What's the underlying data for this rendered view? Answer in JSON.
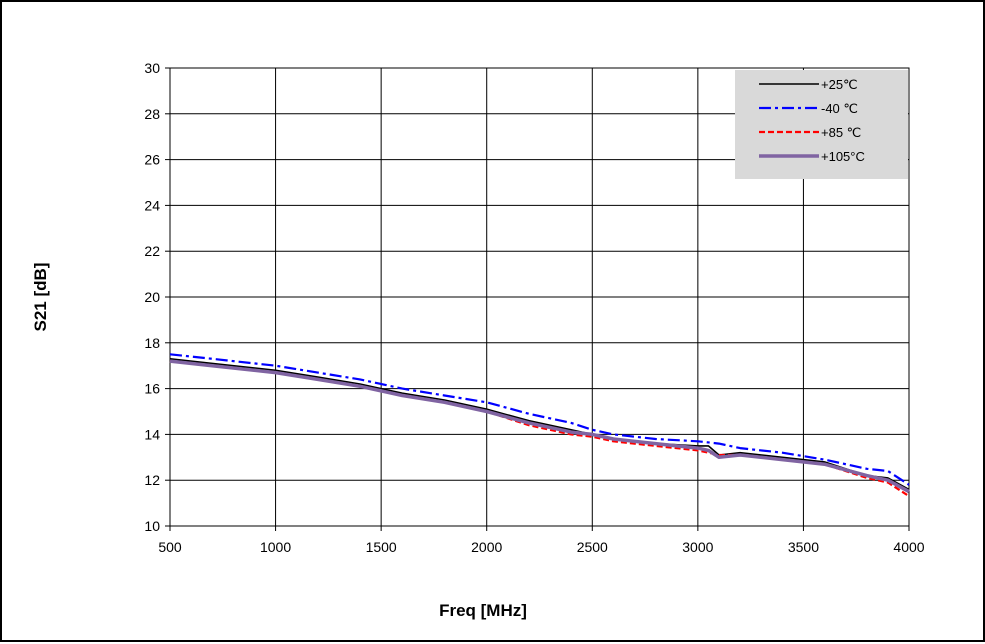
{
  "chart_data": {
    "type": "line",
    "title": "",
    "xlabel": "Freq [MHz]",
    "ylabel": "S21 [dB]",
    "xlim": [
      500,
      4000
    ],
    "ylim": [
      10,
      30
    ],
    "x_ticks": [
      500,
      1000,
      1500,
      2000,
      2500,
      3000,
      3500,
      4000
    ],
    "y_ticks": [
      10,
      12,
      14,
      16,
      18,
      20,
      22,
      24,
      26,
      28,
      30
    ],
    "grid": true,
    "legend_position": "top-right",
    "series": [
      {
        "name": "+25℃",
        "color": "#000000",
        "style": "solid",
        "x": [
          500,
          700,
          1000,
          1200,
          1400,
          1600,
          1800,
          2000,
          2200,
          2400,
          2500,
          2600,
          2800,
          3000,
          3050,
          3100,
          3200,
          3400,
          3600,
          3800,
          3900,
          4000
        ],
        "y": [
          17.3,
          17.1,
          16.8,
          16.5,
          16.2,
          15.8,
          15.5,
          15.1,
          14.6,
          14.2,
          14.0,
          13.8,
          13.6,
          13.5,
          13.5,
          13.1,
          13.2,
          13.0,
          12.8,
          12.2,
          12.1,
          11.6
        ]
      },
      {
        "name": "-40 ℃",
        "color": "#0000ff",
        "style": "dashdot",
        "x": [
          500,
          700,
          1000,
          1200,
          1400,
          1600,
          1800,
          2000,
          2200,
          2400,
          2500,
          2600,
          2800,
          3000,
          3100,
          3200,
          3400,
          3600,
          3800,
          3900,
          4000
        ],
        "y": [
          17.5,
          17.3,
          17.0,
          16.7,
          16.4,
          16.0,
          15.7,
          15.4,
          14.9,
          14.5,
          14.2,
          14.0,
          13.8,
          13.7,
          13.6,
          13.4,
          13.2,
          12.9,
          12.5,
          12.4,
          11.8
        ]
      },
      {
        "name": "+85 ℃",
        "color": "#ff0000",
        "style": "dashed",
        "x": [
          500,
          700,
          1000,
          1200,
          1400,
          1600,
          1800,
          2000,
          2200,
          2400,
          2500,
          2600,
          2800,
          3000,
          3100,
          3200,
          3400,
          3600,
          3800,
          3900,
          4000
        ],
        "y": [
          17.2,
          17.0,
          16.7,
          16.4,
          16.1,
          15.7,
          15.4,
          15.0,
          14.4,
          14.0,
          13.9,
          13.7,
          13.5,
          13.3,
          13.1,
          13.1,
          12.9,
          12.7,
          12.1,
          11.9,
          11.3
        ]
      },
      {
        "name": "+105°C",
        "color": "#8064a2",
        "style": "solid-thick",
        "x": [
          500,
          700,
          1000,
          1200,
          1400,
          1600,
          1800,
          2000,
          2200,
          2400,
          2500,
          2600,
          2800,
          3000,
          3050,
          3100,
          3200,
          3400,
          3600,
          3800,
          3900,
          4000
        ],
        "y": [
          17.2,
          17.0,
          16.7,
          16.4,
          16.1,
          15.7,
          15.4,
          15.0,
          14.5,
          14.1,
          14.0,
          13.8,
          13.6,
          13.4,
          13.3,
          13.0,
          13.1,
          12.9,
          12.7,
          12.2,
          12.0,
          11.5
        ]
      }
    ]
  }
}
